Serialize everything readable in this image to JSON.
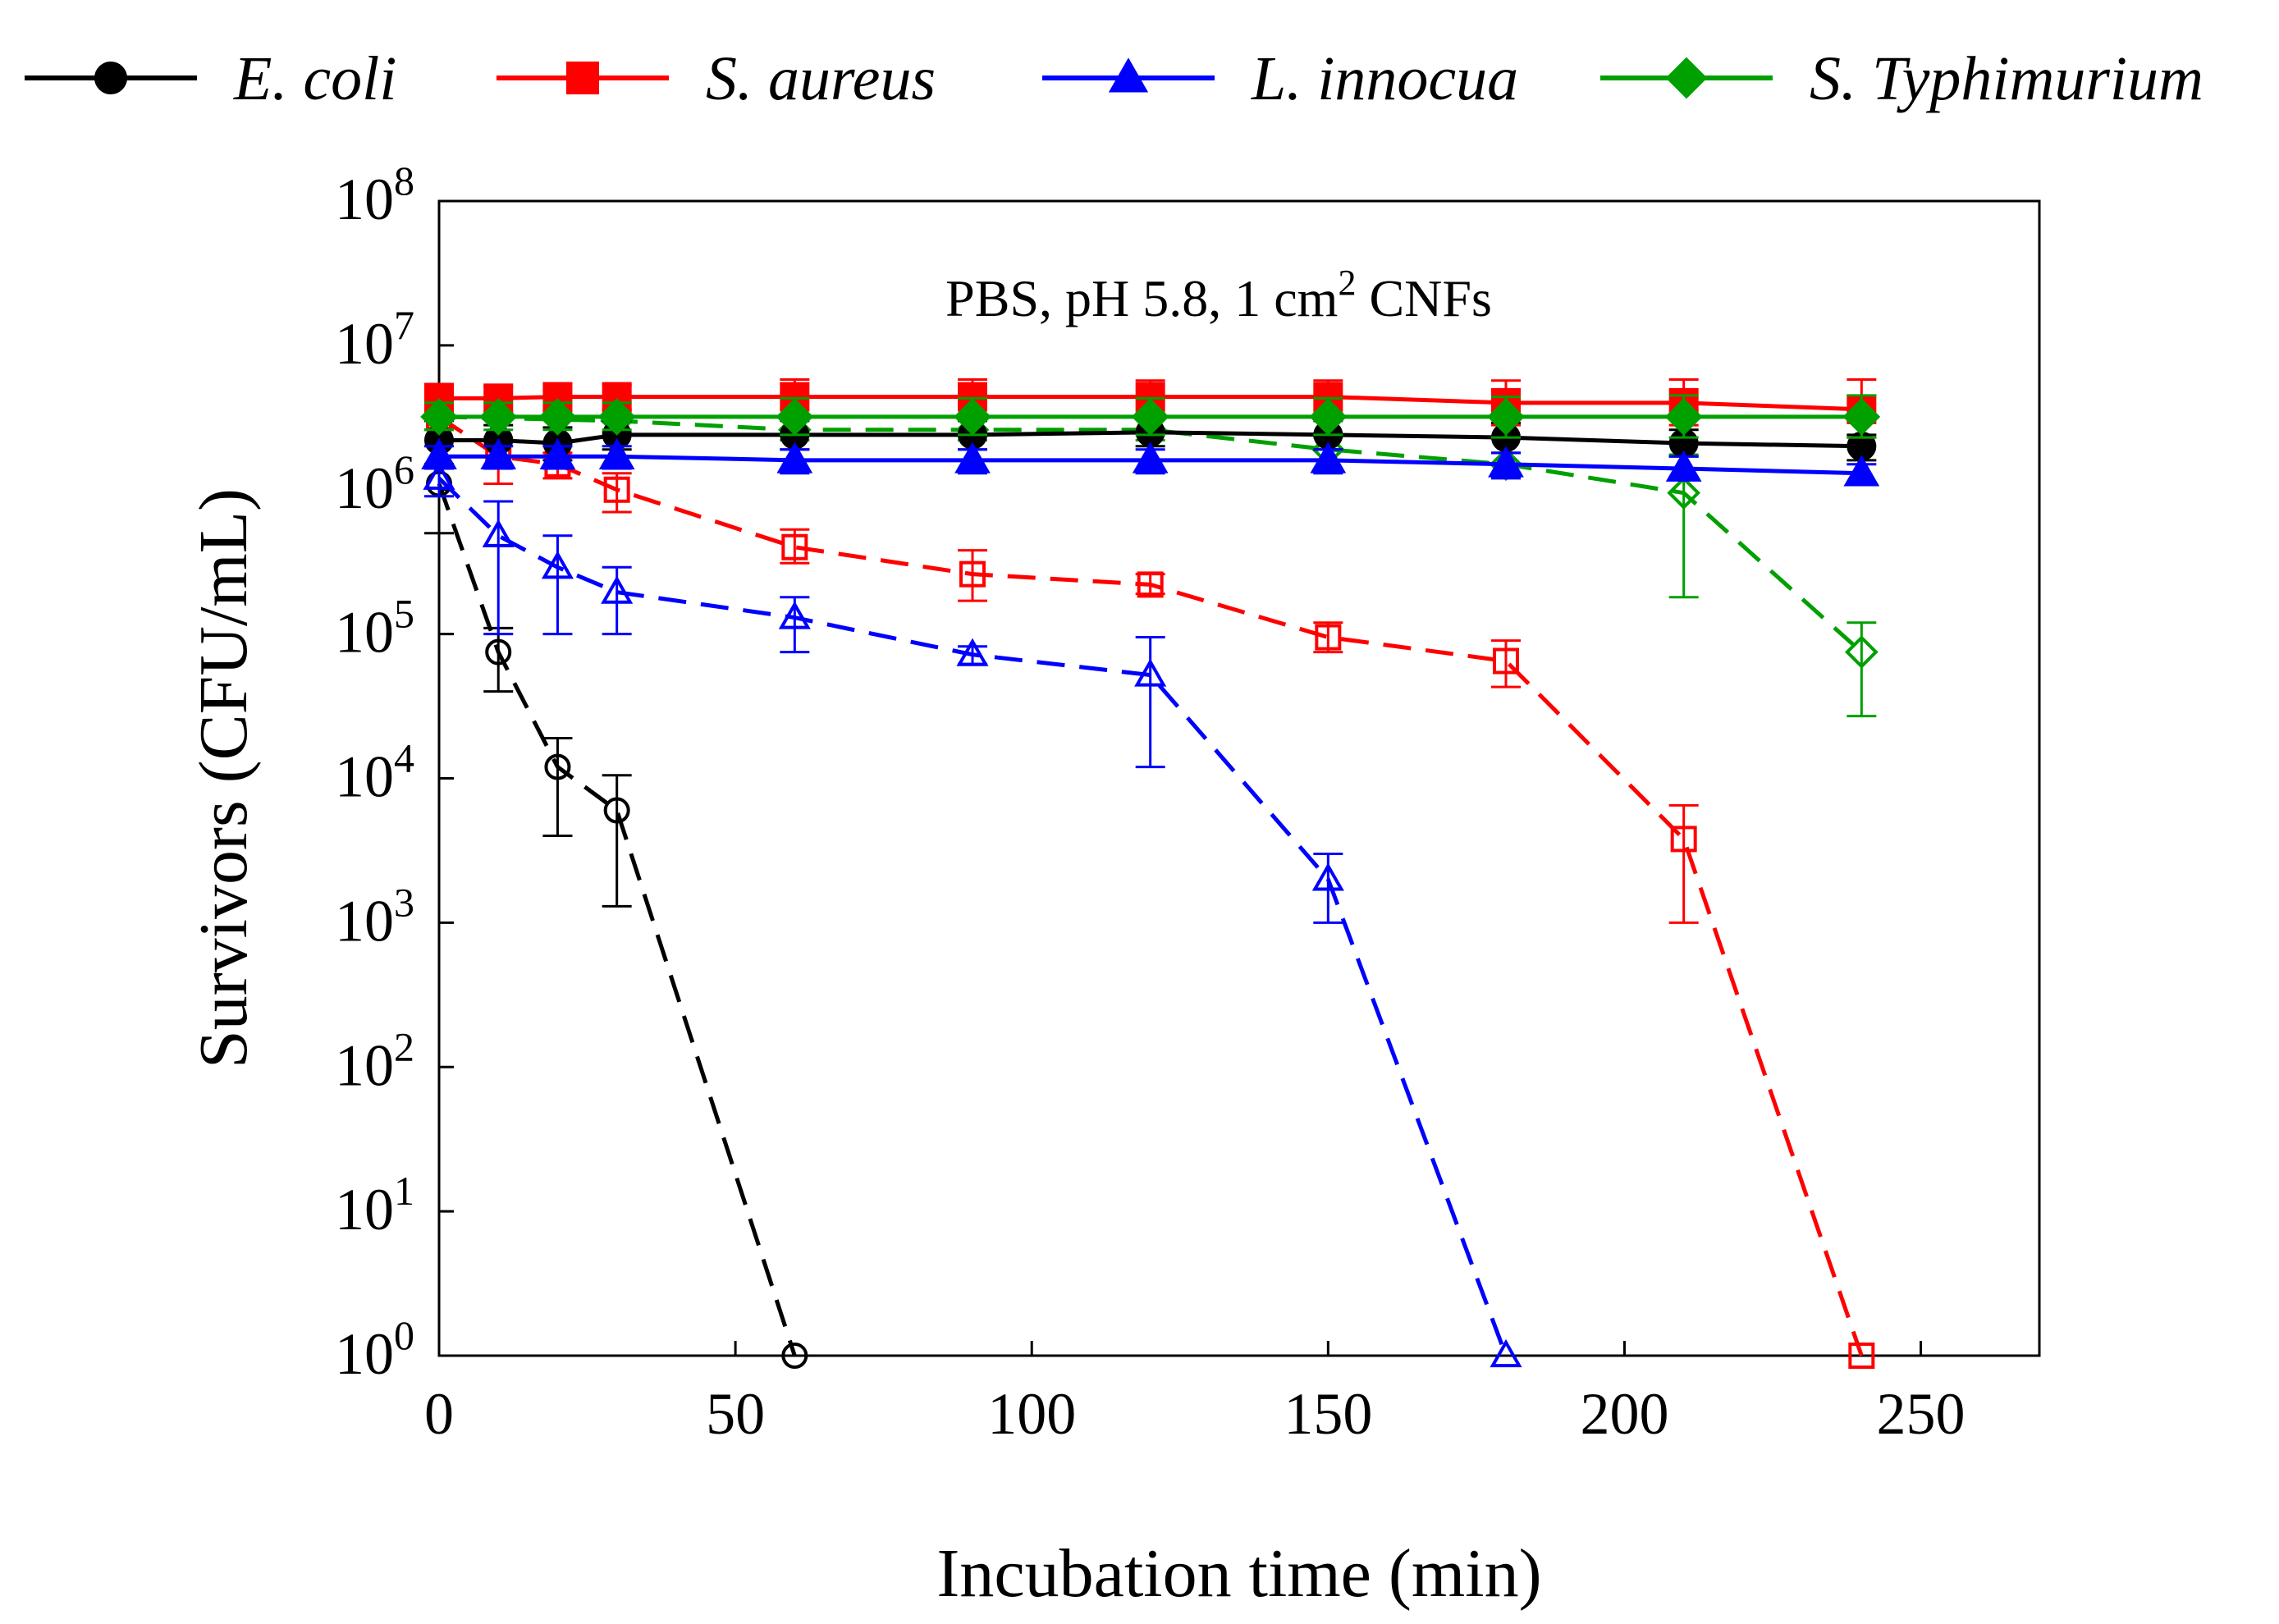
{
  "chart_data": {
    "type": "line",
    "yscale": "log",
    "title": "",
    "annotation": {
      "text": "PBS, pH 5.8, 1 cm",
      "sup": "2",
      "text_after": " CNFs"
    },
    "xlabel": "Incubation time (min)",
    "ylabel": "Survivors (CFU/mL)",
    "xlim": [
      0,
      270
    ],
    "ylim": [
      1,
      100000000
    ],
    "x_ticks": [
      0,
      50,
      100,
      150,
      200,
      250
    ],
    "x_tick_labels": [
      "0",
      "50",
      "100",
      "150",
      "200",
      "250"
    ],
    "y_ticks": [
      {
        "value": 1,
        "base": "10",
        "exp": "0"
      },
      {
        "value": 10,
        "base": "10",
        "exp": "1"
      },
      {
        "value": 100,
        "base": "10",
        "exp": "2"
      },
      {
        "value": 1000,
        "base": "10",
        "exp": "3"
      },
      {
        "value": 10000,
        "base": "10",
        "exp": "4"
      },
      {
        "value": 100000,
        "base": "10",
        "exp": "5"
      },
      {
        "value": 1000000,
        "base": "10",
        "exp": "6"
      },
      {
        "value": 10000000,
        "base": "10",
        "exp": "7"
      },
      {
        "value": 100000000,
        "base": "10",
        "exp": "8"
      }
    ],
    "legend": {
      "position": "top",
      "entries": [
        {
          "label": "E. coli",
          "color": "#000000",
          "marker": "circle"
        },
        {
          "label": "S. aureus",
          "color": "#ff0000",
          "marker": "square"
        },
        {
          "label": "L. innocua",
          "color": "#0000ff",
          "marker": "triangle"
        },
        {
          "label": "S. Typhimurium",
          "color": "#00a000",
          "marker": "diamond"
        }
      ]
    },
    "series": [
      {
        "name": "E. coli control",
        "color": "#000000",
        "marker": "circle",
        "filled": true,
        "dashed": false,
        "x": [
          0,
          10,
          20,
          30,
          60,
          90,
          120,
          150,
          180,
          210,
          240
        ],
        "y": [
          2200000,
          2200000,
          2100000,
          2400000,
          2400000,
          2400000,
          2500000,
          2400000,
          2300000,
          2100000,
          2000000
        ],
        "err": [
          [
            1500000,
            3000000
          ],
          [
            1700000,
            2800000
          ],
          [
            1600000,
            2700000
          ],
          [
            1900000,
            3000000
          ],
          [
            1900000,
            3000000
          ],
          [
            1900000,
            3000000
          ],
          [
            2000000,
            3100000
          ],
          [
            1900000,
            3000000
          ],
          [
            1800000,
            2900000
          ],
          [
            1700000,
            2600000
          ],
          [
            1600000,
            2400000
          ]
        ]
      },
      {
        "name": "S. aureus control",
        "color": "#ff0000",
        "marker": "square",
        "filled": true,
        "dashed": false,
        "x": [
          0,
          10,
          20,
          30,
          60,
          90,
          120,
          150,
          180,
          210,
          240
        ],
        "y": [
          4300000,
          4300000,
          4400000,
          4400000,
          4400000,
          4400000,
          4400000,
          4400000,
          4000000,
          4000000,
          3600000
        ],
        "err": [
          [
            3400000,
            5400000
          ],
          [
            3400000,
            5200000
          ],
          [
            3500000,
            5400000
          ],
          [
            3500000,
            5300000
          ],
          [
            3300000,
            5800000
          ],
          [
            3300000,
            5800000
          ],
          [
            3400000,
            5700000
          ],
          [
            3400000,
            5700000
          ],
          [
            2800000,
            5700000
          ],
          [
            2800000,
            5800000
          ],
          [
            2300000,
            5800000
          ]
        ]
      },
      {
        "name": "L. innocua control",
        "color": "#0000ff",
        "marker": "triangle",
        "filled": true,
        "dashed": false,
        "x": [
          0,
          10,
          20,
          30,
          60,
          90,
          120,
          150,
          180,
          210,
          240
        ],
        "y": [
          1700000,
          1700000,
          1700000,
          1700000,
          1600000,
          1600000,
          1600000,
          1600000,
          1500000,
          1400000,
          1300000
        ],
        "err": [
          [
            1400000,
            2000000
          ],
          [
            1400000,
            2000000
          ],
          [
            1400000,
            2000000
          ],
          [
            1400000,
            2000000
          ],
          [
            1300000,
            1900000
          ],
          [
            1300000,
            1900000
          ],
          [
            1300000,
            1900000
          ],
          [
            1300000,
            1900000
          ],
          [
            1200000,
            1800000
          ],
          [
            1200000,
            1700000
          ],
          [
            1100000,
            1500000
          ]
        ]
      },
      {
        "name": "S. Typhimurium control",
        "color": "#00a000",
        "marker": "diamond",
        "filled": true,
        "dashed": false,
        "x": [
          0,
          10,
          20,
          30,
          60,
          90,
          120,
          150,
          180,
          210,
          240
        ],
        "y": [
          3200000,
          3200000,
          3200000,
          3200000,
          3200000,
          3200000,
          3200000,
          3200000,
          3200000,
          3200000,
          3200000
        ],
        "err": [
          [
            2600000,
            4000000
          ],
          [
            2600000,
            4000000
          ],
          [
            2600000,
            4000000
          ],
          [
            2600000,
            4000000
          ],
          [
            2400000,
            4300000
          ],
          [
            2400000,
            4300000
          ],
          [
            2400000,
            4300000
          ],
          [
            2400000,
            4300000
          ],
          [
            2300000,
            4400000
          ],
          [
            2300000,
            4500000
          ],
          [
            2300000,
            4500000
          ]
        ]
      },
      {
        "name": "E. coli CNFs",
        "color": "#000000",
        "marker": "circle",
        "filled": false,
        "dashed": true,
        "x": [
          0,
          10,
          20,
          30,
          60
        ],
        "y": [
          1100000,
          75000,
          12000,
          6000,
          1
        ],
        "err": [
          [
            500000,
            1500000
          ],
          [
            40000,
            110000
          ],
          [
            4000,
            19000
          ],
          [
            1300,
            10500
          ],
          null
        ]
      },
      {
        "name": "S. aureus CNFs",
        "color": "#ff0000",
        "marker": "square",
        "filled": false,
        "dashed": true,
        "x": [
          0,
          10,
          20,
          30,
          60,
          90,
          120,
          150,
          180,
          210,
          240
        ],
        "y": [
          3200000,
          1700000,
          1500000,
          1000000,
          400000,
          260000,
          220000,
          95000,
          65000,
          3800,
          1
        ],
        "err": [
          [
            2600000,
            3900000
          ],
          [
            1100000,
            2300000
          ],
          [
            1200000,
            1800000
          ],
          [
            700000,
            1300000
          ],
          [
            310000,
            530000
          ],
          [
            170000,
            380000
          ],
          [
            190000,
            260000
          ],
          [
            75000,
            120000
          ],
          [
            43000,
            90000
          ],
          [
            1000,
            6500
          ],
          null
        ]
      },
      {
        "name": "L. innocua CNFs",
        "color": "#0000ff",
        "marker": "triangle",
        "filled": false,
        "dashed": true,
        "x": [
          0,
          10,
          20,
          30,
          60,
          90,
          120,
          150,
          180
        ],
        "y": [
          1200000,
          480000,
          290000,
          195000,
          130000,
          72000,
          52000,
          2000,
          1
        ],
        "err": [
          [
            900000,
            1500000
          ],
          [
            100000,
            830000
          ],
          [
            100000,
            480000
          ],
          [
            100000,
            290000
          ],
          [
            75000,
            180000
          ],
          [
            62000,
            82000
          ],
          [
            12000,
            95000
          ],
          [
            1000,
            3000
          ],
          null
        ]
      },
      {
        "name": "S. Typhimurium CNFs",
        "color": "#00a000",
        "marker": "diamond",
        "filled": false,
        "dashed": true,
        "x": [
          0,
          30,
          60,
          90,
          120,
          150,
          180,
          210,
          240
        ],
        "y": [
          3200000,
          3000000,
          2600000,
          2600000,
          2600000,
          1900000,
          1500000,
          950000,
          75000
        ],
        "err": [
          [
            2600000,
            3900000
          ],
          [
            2500000,
            3600000
          ],
          [
            2200000,
            3100000
          ],
          [
            2200000,
            3100000
          ],
          [
            2200000,
            3100000
          ],
          [
            1600000,
            2300000
          ],
          [
            1300000,
            1800000
          ],
          [
            180000,
            1750000
          ],
          [
            27000,
            120000
          ]
        ]
      }
    ]
  }
}
